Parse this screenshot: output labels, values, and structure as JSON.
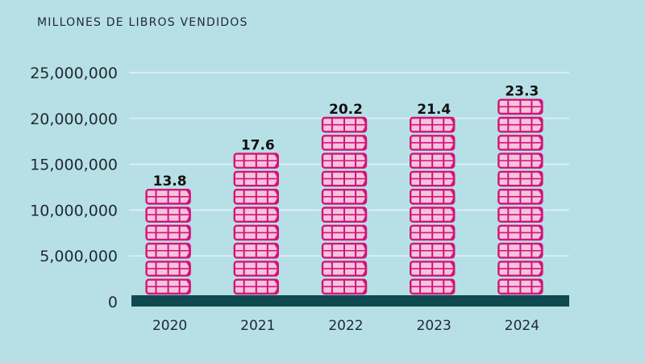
{
  "chart_data": {
    "type": "bar",
    "title": "MILLONES DE LIBROS VENDIDOS",
    "categories": [
      "2020",
      "2021",
      "2022",
      "2023",
      "2024"
    ],
    "values": [
      13.8,
      17.6,
      20.2,
      21.4,
      23.3
    ],
    "data_labels": [
      "13.8",
      "17.6",
      "20.2",
      "21.4",
      "23.3"
    ],
    "y_ticks": [
      {
        "value": 0,
        "label": "0"
      },
      {
        "value": 5,
        "label": "5,000,000"
      },
      {
        "value": 10,
        "label": "10,000,000"
      },
      {
        "value": 15,
        "label": "15,000,000"
      },
      {
        "value": 20,
        "label": "20,000,000"
      },
      {
        "value": 25,
        "label": "25,000,000"
      }
    ],
    "ylim": [
      0,
      25
    ],
    "grid": true,
    "xlabel": "",
    "ylabel": ""
  },
  "colors": {
    "background": "#b7e0e6",
    "book_stroke": "#d4137a",
    "book_fill": "#f4c4dc",
    "baseline": "#0e4a50",
    "gridline": "#e8f6f8"
  },
  "icons": {
    "bar_mark": "book-stack-icon"
  }
}
